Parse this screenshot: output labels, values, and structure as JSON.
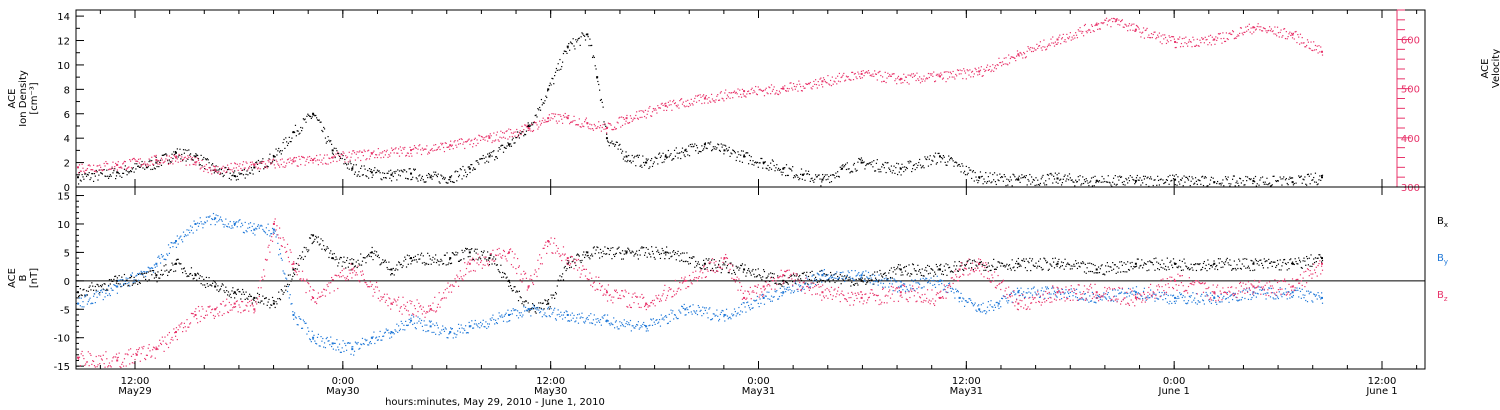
{
  "colors": {
    "black": "#000000",
    "pink": "#e8336a",
    "blue": "#1f78d8"
  },
  "chart_data": [
    {
      "type": "scatter",
      "panel": "top",
      "ylabel_lines": [
        "ACE",
        "Ion Density",
        "[cm⁻³]"
      ],
      "y2label_lines": [
        "ACE",
        "Velocity",
        "[km/s]"
      ],
      "ylim": [
        0,
        14.5
      ],
      "y2lim": [
        300,
        660
      ],
      "yticks": [
        0,
        2,
        4,
        6,
        8,
        10,
        12,
        14
      ],
      "y2ticks": [
        300,
        400,
        500,
        600
      ],
      "series": [
        {
          "axis": "left",
          "color": "#000000",
          "points": [
            [
              0,
              0.8
            ],
            [
              4,
              1.2
            ],
            [
              8,
              2.0
            ],
            [
              10,
              2.8
            ],
            [
              12,
              2.5
            ],
            [
              14,
              1.4
            ],
            [
              16,
              0.9
            ],
            [
              18,
              1.6
            ],
            [
              20,
              2.5
            ],
            [
              22,
              4.5
            ],
            [
              24,
              6.0
            ],
            [
              26,
              3.0
            ],
            [
              28,
              1.5
            ],
            [
              30,
              1.2
            ],
            [
              32,
              1.0
            ],
            [
              34,
              1.1
            ],
            [
              36,
              0.8
            ],
            [
              38,
              0.8
            ],
            [
              40,
              1.5
            ],
            [
              42,
              2.5
            ],
            [
              44,
              3.5
            ],
            [
              46,
              5.0
            ],
            [
              48,
              8.0
            ],
            [
              50,
              11.5
            ],
            [
              52,
              12.5
            ],
            [
              53,
              9.0
            ],
            [
              54,
              4.0
            ],
            [
              56,
              2.5
            ],
            [
              58,
              2.0
            ],
            [
              60,
              2.5
            ],
            [
              62,
              3.0
            ],
            [
              64,
              3.5
            ],
            [
              66,
              3.0
            ],
            [
              68,
              2.5
            ],
            [
              70,
              2.0
            ],
            [
              72,
              1.5
            ],
            [
              74,
              1.0
            ],
            [
              76,
              0.6
            ],
            [
              78,
              1.5
            ],
            [
              80,
              2.0
            ],
            [
              84,
              1.5
            ],
            [
              88,
              2.5
            ],
            [
              92,
              0.8
            ],
            [
              96,
              0.6
            ],
            [
              100,
              0.7
            ],
            [
              104,
              0.5
            ],
            [
              108,
              0.5
            ],
            [
              112,
              0.6
            ],
            [
              116,
              0.4
            ],
            [
              120,
              0.5
            ],
            [
              124,
              0.4
            ],
            [
              127,
              0.8
            ]
          ]
        },
        {
          "axis": "right",
          "color": "#e8336a",
          "points": [
            [
              0,
              340
            ],
            [
              4,
              345
            ],
            [
              8,
              355
            ],
            [
              10,
              360
            ],
            [
              12,
              350
            ],
            [
              14,
              335
            ],
            [
              18,
              345
            ],
            [
              22,
              352
            ],
            [
              24,
              355
            ],
            [
              26,
              360
            ],
            [
              30,
              368
            ],
            [
              34,
              375
            ],
            [
              38,
              385
            ],
            [
              42,
              400
            ],
            [
              46,
              420
            ],
            [
              48,
              440
            ],
            [
              50,
              440
            ],
            [
              52,
              430
            ],
            [
              54,
              420
            ],
            [
              56,
              440
            ],
            [
              60,
              465
            ],
            [
              64,
              480
            ],
            [
              68,
              495
            ],
            [
              72,
              500
            ],
            [
              76,
              515
            ],
            [
              80,
              530
            ],
            [
              84,
              520
            ],
            [
              88,
              525
            ],
            [
              92,
              535
            ],
            [
              96,
              570
            ],
            [
              100,
              600
            ],
            [
              104,
              630
            ],
            [
              106,
              640
            ],
            [
              108,
              620
            ],
            [
              112,
              595
            ],
            [
              116,
              600
            ],
            [
              120,
              625
            ],
            [
              124,
              610
            ],
            [
              127,
              575
            ]
          ]
        }
      ]
    },
    {
      "type": "scatter",
      "panel": "bottom",
      "ylabel_lines": [
        "ACE",
        "B",
        "[nT]"
      ],
      "ylim": [
        -15.5,
        16.5
      ],
      "yticks": [
        -15,
        -10,
        -5,
        0,
        5,
        10,
        15
      ],
      "legend": [
        "B_x",
        "B_y",
        "B_z"
      ],
      "series": [
        {
          "name": "Bx",
          "color": "#000000",
          "points": [
            [
              0,
              -2
            ],
            [
              4,
              0
            ],
            [
              8,
              1
            ],
            [
              10,
              3
            ],
            [
              12,
              1
            ],
            [
              14,
              -1
            ],
            [
              16,
              -2
            ],
            [
              18,
              -3
            ],
            [
              20,
              -4
            ],
            [
              22,
              2
            ],
            [
              24,
              8
            ],
            [
              26,
              4
            ],
            [
              28,
              3
            ],
            [
              30,
              5
            ],
            [
              32,
              2
            ],
            [
              34,
              4
            ],
            [
              38,
              4
            ],
            [
              40,
              5
            ],
            [
              42,
              4
            ],
            [
              44,
              0
            ],
            [
              46,
              -5
            ],
            [
              48,
              -4
            ],
            [
              50,
              3
            ],
            [
              52,
              5
            ],
            [
              56,
              5
            ],
            [
              60,
              5
            ],
            [
              64,
              3
            ],
            [
              68,
              2
            ],
            [
              72,
              0
            ],
            [
              76,
              1
            ],
            [
              80,
              0
            ],
            [
              84,
              2
            ],
            [
              88,
              2
            ],
            [
              92,
              3
            ],
            [
              96,
              3
            ],
            [
              100,
              3
            ],
            [
              104,
              2
            ],
            [
              108,
              3
            ],
            [
              112,
              3
            ],
            [
              116,
              3
            ],
            [
              120,
              3
            ],
            [
              124,
              3
            ],
            [
              127,
              4
            ]
          ]
        },
        {
          "name": "By",
          "color": "#1f78d8",
          "points": [
            [
              0,
              -4
            ],
            [
              4,
              -1
            ],
            [
              8,
              3
            ],
            [
              10,
              7
            ],
            [
              12,
              10
            ],
            [
              14,
              11
            ],
            [
              16,
              10
            ],
            [
              18,
              9
            ],
            [
              20,
              9
            ],
            [
              22,
              -6
            ],
            [
              24,
              -10
            ],
            [
              26,
              -11
            ],
            [
              28,
              -12
            ],
            [
              30,
              -10
            ],
            [
              32,
              -9
            ],
            [
              34,
              -7
            ],
            [
              36,
              -8
            ],
            [
              38,
              -9
            ],
            [
              40,
              -8
            ],
            [
              44,
              -6
            ],
            [
              46,
              -5
            ],
            [
              50,
              -6
            ],
            [
              54,
              -7
            ],
            [
              58,
              -8
            ],
            [
              62,
              -5
            ],
            [
              66,
              -6
            ],
            [
              70,
              -3
            ],
            [
              72,
              -2
            ],
            [
              76,
              1
            ],
            [
              80,
              1
            ],
            [
              84,
              -1
            ],
            [
              88,
              0
            ],
            [
              90,
              -3
            ],
            [
              92,
              -5
            ],
            [
              94,
              -4
            ],
            [
              96,
              -2
            ],
            [
              100,
              -2
            ],
            [
              104,
              -3
            ],
            [
              108,
              -2
            ],
            [
              112,
              -3
            ],
            [
              116,
              -3
            ],
            [
              120,
              -2
            ],
            [
              124,
              -2
            ],
            [
              127,
              -3
            ]
          ]
        },
        {
          "name": "Bz",
          "color": "#e8336a",
          "points": [
            [
              0,
              -13.5
            ],
            [
              4,
              -14
            ],
            [
              6,
              -13
            ],
            [
              8,
              -12
            ],
            [
              10,
              -9
            ],
            [
              12,
              -6
            ],
            [
              14,
              -5
            ],
            [
              16,
              -4
            ],
            [
              18,
              -5
            ],
            [
              20,
              10
            ],
            [
              22,
              3
            ],
            [
              24,
              -3
            ],
            [
              28,
              2
            ],
            [
              32,
              -4
            ],
            [
              36,
              -5
            ],
            [
              40,
              3
            ],
            [
              44,
              5
            ],
            [
              46,
              -1
            ],
            [
              48,
              7
            ],
            [
              50,
              4
            ],
            [
              54,
              -2
            ],
            [
              58,
              -4
            ],
            [
              62,
              0
            ],
            [
              66,
              4
            ],
            [
              68,
              -3
            ],
            [
              70,
              -1
            ],
            [
              72,
              1
            ],
            [
              76,
              -2
            ],
            [
              80,
              -3
            ],
            [
              84,
              -2
            ],
            [
              88,
              -3
            ],
            [
              90,
              2
            ],
            [
              92,
              3
            ],
            [
              96,
              -4
            ],
            [
              100,
              -2
            ],
            [
              104,
              -2
            ],
            [
              108,
              -3
            ],
            [
              112,
              0
            ],
            [
              116,
              -2
            ],
            [
              120,
              -1
            ],
            [
              124,
              -1
            ],
            [
              127,
              3
            ]
          ]
        }
      ]
    }
  ],
  "x_axis": {
    "ticks": [
      {
        "t": 0,
        "top": "12:00",
        "bottom": "May29"
      },
      {
        "t": 12,
        "top": "0:00",
        "bottom": "May30"
      },
      {
        "t": 24,
        "top": "12:00",
        "bottom": "May30"
      },
      {
        "t": 36,
        "top": "0:00",
        "bottom": "May31"
      },
      {
        "t": 48,
        "top": "12:00",
        "bottom": "May31"
      },
      {
        "t": 60,
        "top": "0:00",
        "bottom": "June 1"
      },
      {
        "t": 72,
        "top": "12:00",
        "bottom": "June 1"
      }
    ],
    "xlabel": "hours:minutes, May 29, 2010 - June  1, 2010"
  }
}
